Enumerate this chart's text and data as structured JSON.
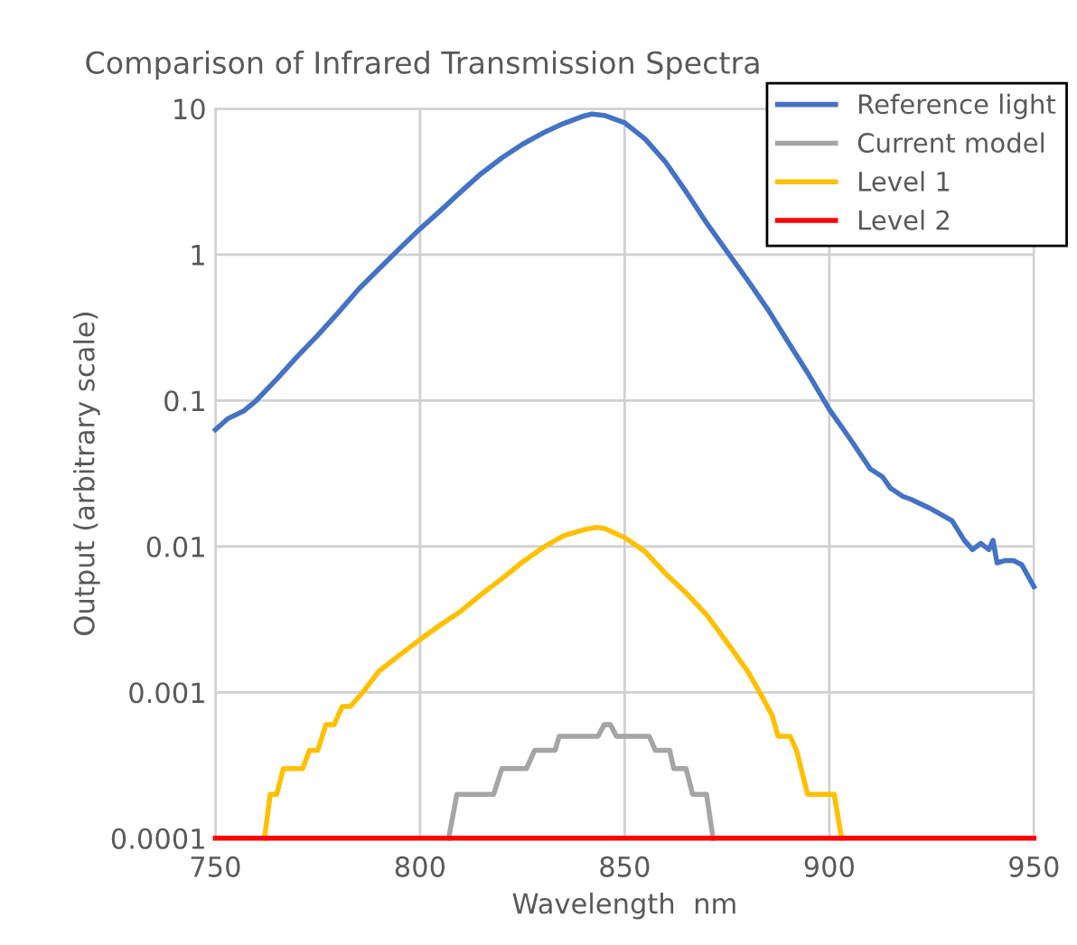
{
  "chart_data": {
    "type": "line",
    "title": "Comparison of Infrared Transmission Spectra",
    "xlabel": "Wavelength  nm",
    "ylabel": "Output (arbitrary scale)",
    "series": [
      {
        "name": "Reference light",
        "color": "#4472c4",
        "x": [
          750,
          753,
          757,
          760,
          765,
          770,
          775,
          780,
          785,
          790,
          795,
          800,
          805,
          810,
          815,
          820,
          825,
          830,
          835,
          840,
          842,
          845,
          850,
          855,
          860,
          865,
          870,
          875,
          880,
          885,
          890,
          895,
          900,
          905,
          910,
          913,
          915,
          918,
          920,
          925,
          930,
          933,
          935,
          937,
          939,
          940,
          941,
          943,
          945,
          947,
          950
        ],
        "values": [
          0.063,
          0.075,
          0.085,
          0.1,
          0.14,
          0.2,
          0.28,
          0.4,
          0.58,
          0.8,
          1.1,
          1.5,
          2.0,
          2.7,
          3.6,
          4.6,
          5.7,
          6.8,
          7.9,
          8.9,
          9.2,
          9.0,
          8.0,
          6.2,
          4.3,
          2.7,
          1.65,
          1.05,
          0.67,
          0.42,
          0.25,
          0.15,
          0.087,
          0.055,
          0.034,
          0.03,
          0.025,
          0.022,
          0.021,
          0.018,
          0.015,
          0.011,
          0.0095,
          0.0105,
          0.0095,
          0.011,
          0.0077,
          0.008,
          0.008,
          0.0075,
          0.0053
        ]
      },
      {
        "name": "Current model",
        "color": "#a5a5a5",
        "x": [
          807,
          809,
          818,
          820,
          826,
          828,
          833,
          834,
          843.5,
          845,
          846.5,
          848,
          856,
          857.5,
          861,
          862,
          865,
          866.6,
          870,
          871.6
        ],
        "values": [
          0.0001,
          0.0002,
          0.0002,
          0.0003,
          0.0003,
          0.0004,
          0.0004,
          0.0005,
          0.0005,
          0.0006,
          0.0006,
          0.0005,
          0.0005,
          0.0004,
          0.0004,
          0.0003,
          0.0003,
          0.0002,
          0.0002,
          0.0001
        ]
      },
      {
        "name": "Level 1",
        "color": "#ffc000",
        "x": [
          762,
          763.4,
          765,
          766.6,
          771.3,
          773,
          775,
          777,
          779,
          781,
          783,
          786,
          790,
          795,
          800,
          805,
          810,
          815,
          820,
          825,
          830,
          835,
          840,
          843,
          845,
          850,
          855,
          860,
          865,
          870,
          875,
          880,
          883,
          886,
          887.5,
          890.4,
          892,
          894.7,
          901.2,
          903
        ],
        "values": [
          0.0001,
          0.0002,
          0.0002,
          0.0003,
          0.0003,
          0.0004,
          0.0004,
          0.0006,
          0.0006,
          0.0008,
          0.0008,
          0.001,
          0.0014,
          0.0018,
          0.0023,
          0.0029,
          0.0036,
          0.0047,
          0.006,
          0.0078,
          0.0098,
          0.0118,
          0.013,
          0.0135,
          0.0133,
          0.0115,
          0.0092,
          0.0065,
          0.0048,
          0.0034,
          0.0022,
          0.0014,
          0.001,
          0.0007,
          0.0005,
          0.0005,
          0.0004,
          0.0002,
          0.0002,
          0.0001
        ]
      },
      {
        "name": "Level 2",
        "color": "#ff0000",
        "x": [
          750,
          950
        ],
        "values": [
          0.0001,
          0.0001
        ]
      }
    ],
    "log": "y",
    "xlim": [
      750,
      950
    ],
    "ylim": [
      0.0001,
      10
    ],
    "xticks": [
      750,
      800,
      850,
      900,
      950
    ],
    "yticks": [
      0.0001,
      0.001,
      0.01,
      0.1,
      1,
      10
    ],
    "grid": true,
    "legend": "top right",
    "line_style": "solid",
    "marker": "none"
  }
}
